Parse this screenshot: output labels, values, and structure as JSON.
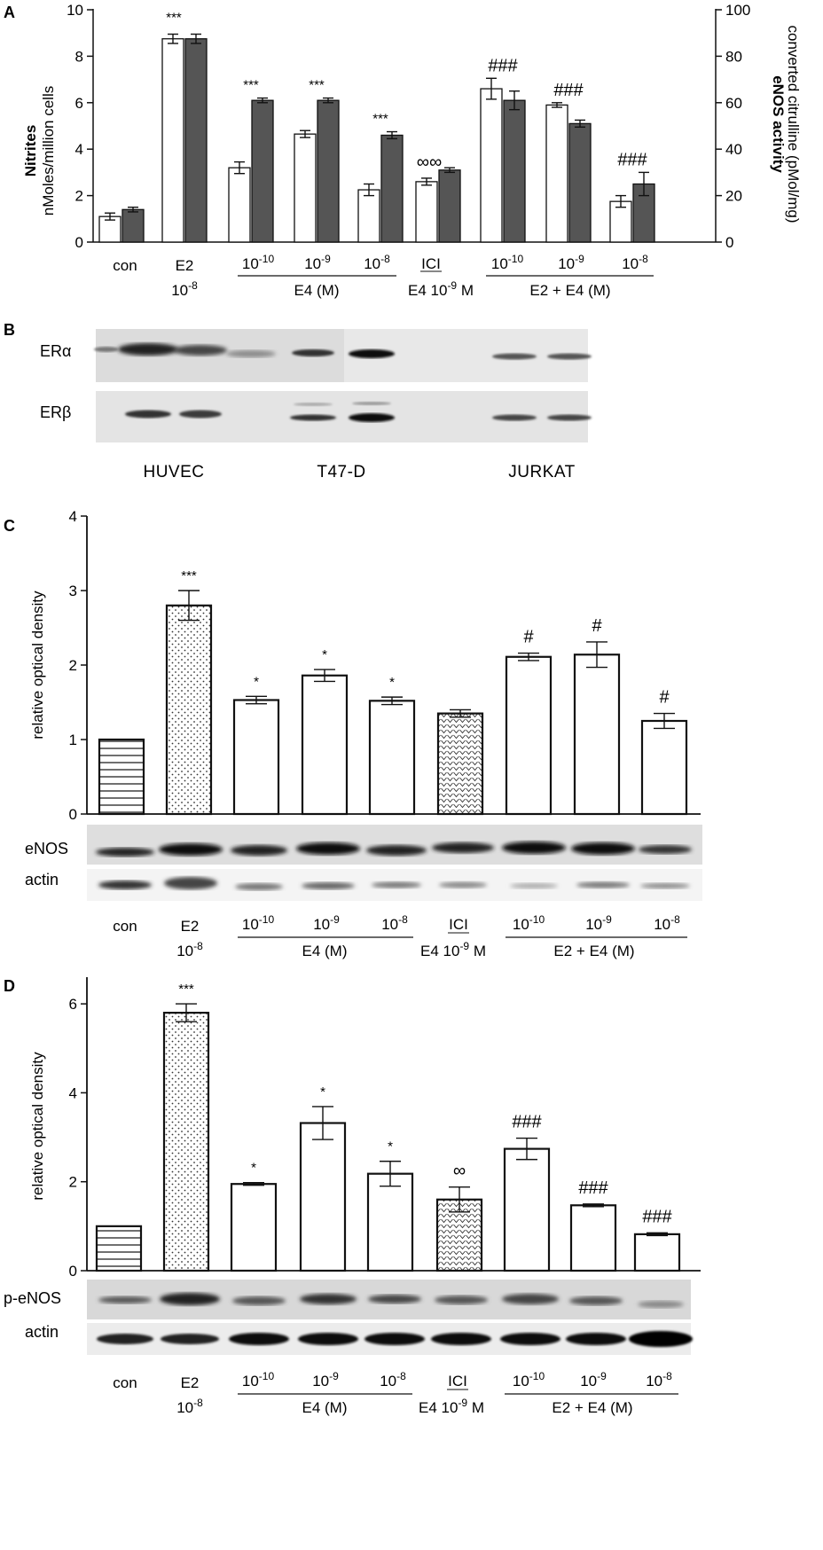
{
  "panels": {
    "A": {
      "letter": "A",
      "ylabel_left_1": "Nitrites",
      "ylabel_left_2": "nMoles/million cells",
      "ylabel_right_1": "eNOS activity",
      "ylabel_right_2": "converted citrulline (pMol/mg)",
      "left_ticks": [
        "0",
        "2",
        "4",
        "6",
        "8",
        "10"
      ],
      "right_ticks": [
        "0",
        "20",
        "40",
        "60",
        "80",
        "100"
      ]
    },
    "B": {
      "letter": "B",
      "blots": [
        "ERα",
        "ERβ"
      ],
      "cells": [
        "HUVEC",
        "T47-D",
        "JURKAT"
      ]
    },
    "C": {
      "letter": "C",
      "ylabel": "relative optical density",
      "ticks": [
        "0",
        "1",
        "2",
        "3",
        "4"
      ],
      "blots": [
        "eNOS",
        "actin"
      ]
    },
    "D": {
      "letter": "D",
      "ylabel": "relative optical density",
      "ticks": [
        "0",
        "2",
        "4",
        "6"
      ],
      "blots": [
        "p-eNOS",
        "actin"
      ]
    }
  },
  "categories": {
    "con": "con",
    "e2": "E2",
    "e2_dose": "10",
    "e2_exp": "-8",
    "doses": [
      {
        "base": "10",
        "exp": "-10"
      },
      {
        "base": "10",
        "exp": "-9"
      },
      {
        "base": "10",
        "exp": "-8"
      }
    ],
    "e4_group": "E4 (M)",
    "ici": "ICI",
    "ici_group_prefix": "E4 10",
    "ici_group_exp": "-9",
    "ici_group_suffix": " M",
    "e2e4_group": "E2 + E4 (M)"
  },
  "chart_data": [
    {
      "panel": "A",
      "type": "bar",
      "categories": [
        "con",
        "E2 10-8",
        "E4 10-10",
        "E4 10-9",
        "E4 10-8",
        "ICI + E4 10-9",
        "E2 + E4 10-10",
        "E2 + E4 10-9",
        "E2 + E4 10-8"
      ],
      "series": [
        {
          "axis": "left",
          "color": "#ffffff",
          "values": [
            1.1,
            8.75,
            3.2,
            4.65,
            2.25,
            2.6,
            6.6,
            5.9,
            1.75
          ],
          "errors": [
            0.15,
            0.2,
            0.25,
            0.15,
            0.25,
            0.15,
            0.45,
            0.1,
            0.25
          ]
        },
        {
          "axis": "right",
          "color": "#555555",
          "values": [
            14,
            87.5,
            61,
            61,
            46,
            31,
            61,
            51,
            25
          ],
          "errors": [
            1,
            2,
            1,
            1,
            1.5,
            1,
            4,
            1.5,
            5
          ]
        }
      ],
      "ylim_left": [
        0,
        10
      ],
      "ylim_right": [
        0,
        100
      ],
      "annotations": [
        "",
        "***",
        "***",
        "***",
        "***",
        "∞∞",
        "###",
        "###",
        "###"
      ]
    },
    {
      "panel": "C",
      "type": "bar",
      "categories": [
        "con",
        "E2 10-8",
        "E4 10-10",
        "E4 10-9",
        "E4 10-8",
        "ICI + E4 10-9",
        "E2 + E4 10-10",
        "E2 + E4 10-9",
        "E2 + E4 10-8"
      ],
      "values": [
        1.0,
        2.8,
        1.53,
        1.86,
        1.52,
        1.35,
        2.11,
        2.14,
        1.25
      ],
      "errors": [
        0,
        0.2,
        0.05,
        0.08,
        0.05,
        0.05,
        0.05,
        0.17,
        0.1
      ],
      "ylim": [
        0,
        4
      ],
      "annotations": [
        "",
        "***",
        "*",
        "*",
        "*",
        "",
        "#",
        "#",
        "#"
      ],
      "fills": [
        "hlines",
        "dots",
        "white",
        "white",
        "white",
        "chevrons",
        "white",
        "white",
        "white"
      ]
    },
    {
      "panel": "D",
      "type": "bar",
      "categories": [
        "con",
        "E2 10-8",
        "E4 10-10",
        "E4 10-9",
        "E4 10-8",
        "ICI + E4 10-9",
        "E2 + E4 10-10",
        "E2 + E4 10-9",
        "E2 + E4 10-8"
      ],
      "values": [
        1.0,
        5.8,
        1.95,
        3.32,
        2.18,
        1.6,
        2.74,
        1.47,
        0.82
      ],
      "errors": [
        0,
        0.2,
        0.03,
        0.37,
        0.28,
        0.28,
        0.24,
        0.03,
        0.03
      ],
      "ylim": [
        0,
        6.6
      ],
      "annotations": [
        "",
        "***",
        "*",
        "*",
        "*",
        "∞",
        "###",
        "###",
        "###"
      ],
      "fills": [
        "hlines",
        "dots",
        "white",
        "white",
        "white",
        "chevrons",
        "white",
        "white",
        "white"
      ]
    }
  ]
}
